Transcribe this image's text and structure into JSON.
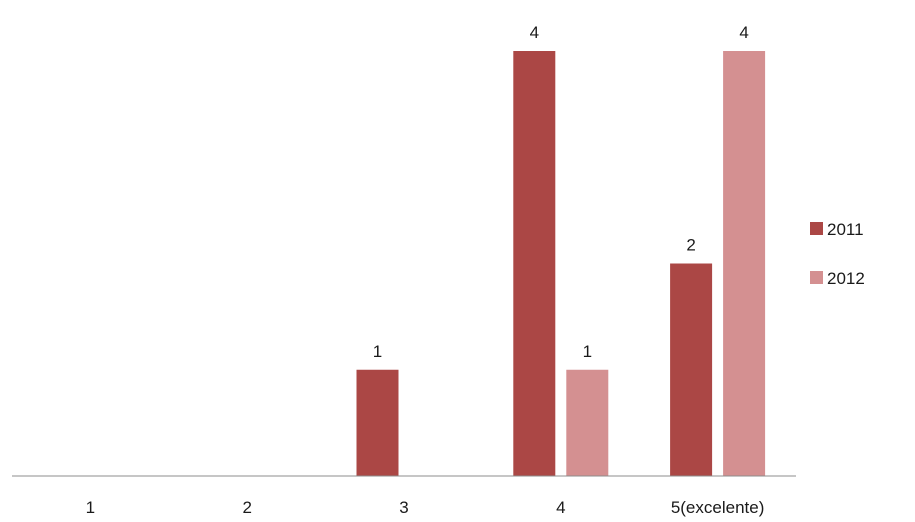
{
  "chart_data": {
    "type": "bar",
    "title": "",
    "xlabel": "",
    "ylabel": "",
    "categories": [
      "1",
      "2",
      "3",
      "4",
      "5(excelente)"
    ],
    "series": [
      {
        "name": "2011",
        "color": "#ab4745",
        "values": [
          null,
          null,
          1,
          4,
          2
        ]
      },
      {
        "name": "2012",
        "color": "#d49091",
        "values": [
          null,
          null,
          null,
          1,
          4
        ]
      }
    ],
    "ylim": [
      0,
      4
    ],
    "grid": false,
    "data_labels": true,
    "legend": "right"
  }
}
